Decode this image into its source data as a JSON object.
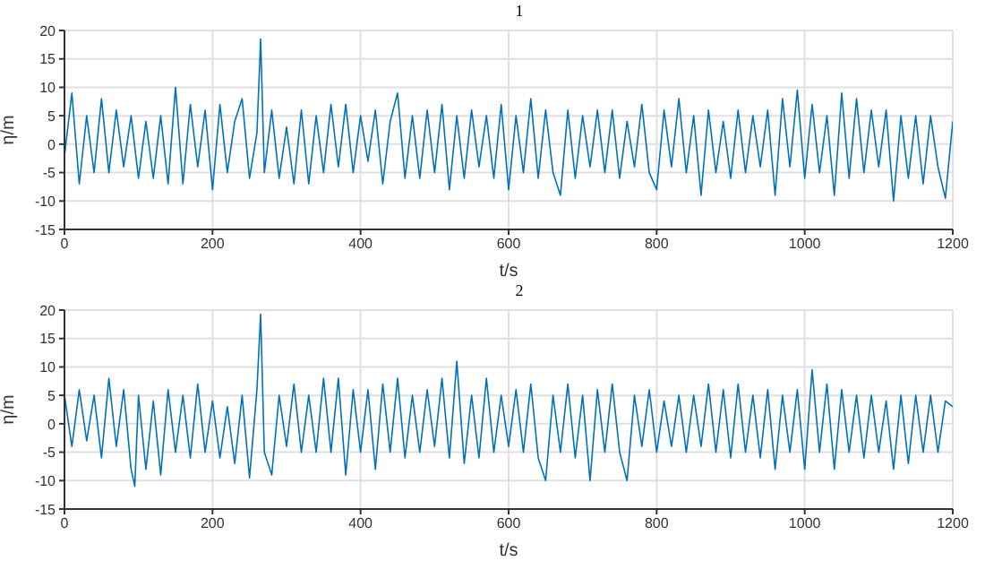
{
  "chart_data": [
    {
      "type": "line",
      "title": "1",
      "xlabel": "t/s",
      "ylabel": "η/m",
      "xlim": [
        0,
        1200
      ],
      "ylim": [
        -15,
        20
      ],
      "xticks": [
        0,
        200,
        400,
        600,
        800,
        1000,
        1200
      ],
      "yticks": [
        -15,
        -10,
        -5,
        0,
        5,
        10,
        15,
        20
      ],
      "grid": true,
      "x": [
        0,
        10,
        20,
        30,
        40,
        50,
        60,
        70,
        80,
        90,
        100,
        110,
        120,
        130,
        140,
        150,
        160,
        170,
        180,
        190,
        200,
        210,
        220,
        230,
        240,
        250,
        260,
        265,
        270,
        280,
        290,
        300,
        310,
        320,
        330,
        340,
        350,
        360,
        370,
        380,
        390,
        400,
        410,
        420,
        430,
        440,
        450,
        460,
        470,
        480,
        490,
        500,
        510,
        520,
        530,
        540,
        550,
        560,
        570,
        580,
        590,
        600,
        610,
        620,
        630,
        640,
        650,
        660,
        670,
        680,
        690,
        700,
        710,
        720,
        730,
        740,
        750,
        760,
        770,
        780,
        790,
        800,
        810,
        820,
        830,
        840,
        850,
        860,
        870,
        880,
        890,
        900,
        910,
        920,
        930,
        940,
        950,
        960,
        970,
        980,
        990,
        1000,
        1010,
        1020,
        1030,
        1040,
        1050,
        1060,
        1070,
        1080,
        1090,
        1100,
        1110,
        1120,
        1130,
        1140,
        1150,
        1160,
        1170,
        1180,
        1190,
        1200
      ],
      "series": [
        {
          "color": "#0072bd",
          "values": [
            -2,
            9,
            -7,
            5,
            -5,
            8,
            -5,
            6,
            -4,
            5,
            -6,
            4,
            -6,
            5,
            -7,
            10,
            -7,
            7,
            -4,
            6,
            -8,
            7,
            -5,
            4,
            8,
            -6,
            2,
            18.5,
            -5,
            6,
            -6,
            3,
            -7,
            6,
            -7,
            5,
            -5,
            7,
            -4,
            7,
            -5,
            5,
            -3,
            6,
            -7,
            4,
            9,
            -6,
            5,
            -6,
            6,
            -5,
            7,
            -8,
            5,
            -6,
            6,
            -4,
            5,
            -6,
            7,
            -8,
            5,
            -5,
            8,
            -6,
            6,
            -5,
            -9,
            6,
            -6,
            5,
            -4,
            6,
            -5,
            6,
            -6,
            4,
            -4,
            7,
            -5,
            -8,
            6,
            -4,
            8,
            -5,
            5,
            -9,
            6,
            -5,
            4,
            -6,
            6,
            -5,
            5,
            -4,
            6,
            -9,
            8,
            -4,
            9.5,
            -6,
            7,
            -5,
            5,
            -9,
            9,
            -6,
            8,
            -5,
            6,
            -4,
            6,
            -10,
            5,
            -6,
            5,
            -7,
            5,
            -4,
            -9.5,
            4
          ]
        }
      ]
    },
    {
      "type": "line",
      "title": "2",
      "xlabel": "t/s",
      "ylabel": "η/m",
      "xlim": [
        0,
        1200
      ],
      "ylim": [
        -15,
        20
      ],
      "xticks": [
        0,
        200,
        400,
        600,
        800,
        1000,
        1200
      ],
      "yticks": [
        -15,
        -10,
        -5,
        0,
        5,
        10,
        15,
        20
      ],
      "grid": true,
      "x": [
        0,
        10,
        20,
        30,
        40,
        50,
        60,
        70,
        80,
        90,
        95,
        100,
        110,
        120,
        130,
        140,
        150,
        160,
        170,
        180,
        190,
        200,
        210,
        220,
        230,
        240,
        250,
        260,
        265,
        270,
        280,
        290,
        300,
        310,
        320,
        330,
        340,
        350,
        360,
        370,
        380,
        390,
        400,
        410,
        420,
        430,
        440,
        450,
        460,
        470,
        480,
        490,
        500,
        510,
        520,
        530,
        540,
        550,
        560,
        570,
        580,
        590,
        600,
        610,
        620,
        630,
        640,
        650,
        660,
        670,
        680,
        690,
        700,
        710,
        720,
        730,
        740,
        750,
        760,
        770,
        780,
        790,
        800,
        810,
        820,
        830,
        840,
        850,
        860,
        870,
        880,
        890,
        900,
        910,
        920,
        930,
        940,
        950,
        960,
        970,
        980,
        990,
        1000,
        1010,
        1020,
        1030,
        1040,
        1050,
        1060,
        1070,
        1080,
        1090,
        1100,
        1110,
        1120,
        1130,
        1140,
        1150,
        1160,
        1170,
        1180,
        1190,
        1200
      ],
      "series": [
        {
          "color": "#0072bd",
          "values": [
            5,
            -4,
            6,
            -3,
            5,
            -6,
            8,
            -4,
            6,
            -8,
            -11,
            5,
            -8,
            4,
            -9,
            6,
            -5,
            5,
            -6,
            7,
            -5,
            4,
            -6,
            3,
            -7,
            5,
            -9.5,
            6,
            19.3,
            -5,
            -9,
            5,
            -4,
            7,
            -5,
            5,
            -5,
            8,
            -5,
            8,
            -9,
            6,
            -5,
            6,
            -8,
            7,
            -5,
            8,
            -6,
            5,
            -5,
            6,
            -4,
            8,
            -6,
            11,
            -7,
            5,
            -6,
            8,
            -5,
            5,
            -4,
            6,
            -5,
            7,
            -6,
            -10,
            5,
            -5,
            7,
            -6,
            5,
            -10,
            6,
            -5,
            7,
            -5,
            -10,
            5,
            -4,
            6,
            -5,
            4,
            -4,
            5,
            -5,
            5,
            -4,
            7,
            -5,
            6,
            -6,
            7,
            -5,
            5,
            -6,
            6,
            -8,
            5,
            -5,
            6,
            -8,
            9.5,
            -5,
            7,
            -8,
            6,
            -5,
            5,
            -6,
            5,
            -5,
            4,
            -8,
            5,
            -7,
            5,
            -5,
            5,
            -5,
            4,
            3
          ]
        }
      ]
    }
  ]
}
